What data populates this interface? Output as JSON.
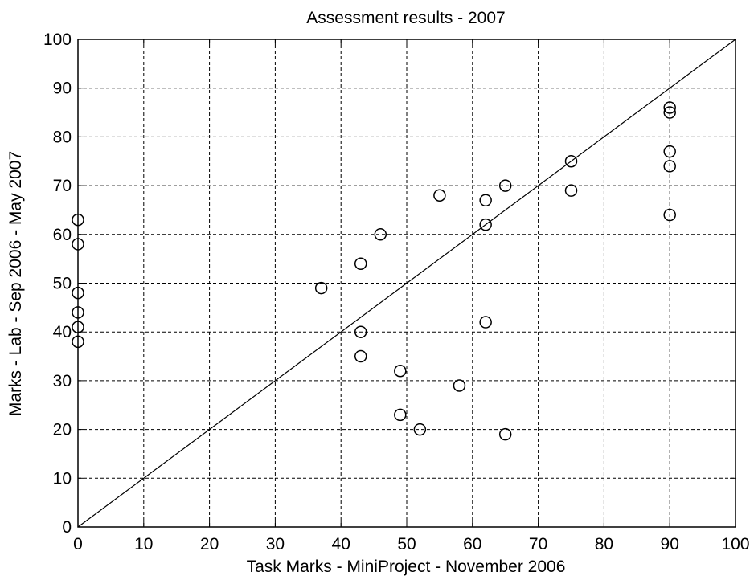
{
  "chart_data": {
    "type": "scatter",
    "title": "Assessment results - 2007",
    "xlabel": "Task Marks - MiniProject - November 2006",
    "ylabel": "Marks - Lab - Sep 2006 - May 2007",
    "xlim": [
      0,
      100
    ],
    "ylim": [
      0,
      100
    ],
    "xticks": [
      0,
      10,
      20,
      30,
      40,
      50,
      60,
      70,
      80,
      90,
      100
    ],
    "yticks": [
      0,
      10,
      20,
      30,
      40,
      50,
      60,
      70,
      80,
      90,
      100
    ],
    "grid": true,
    "marker": "circle",
    "reference_line": {
      "from": [
        0,
        0
      ],
      "to": [
        100,
        100
      ]
    },
    "series": [
      {
        "points": [
          {
            "x": 0,
            "y": 63
          },
          {
            "x": 0,
            "y": 58
          },
          {
            "x": 0,
            "y": 48
          },
          {
            "x": 0,
            "y": 44
          },
          {
            "x": 0,
            "y": 41
          },
          {
            "x": 0,
            "y": 38
          },
          {
            "x": 37,
            "y": 49
          },
          {
            "x": 43,
            "y": 54
          },
          {
            "x": 43,
            "y": 40
          },
          {
            "x": 43,
            "y": 35
          },
          {
            "x": 46,
            "y": 60
          },
          {
            "x": 49,
            "y": 32
          },
          {
            "x": 49,
            "y": 23
          },
          {
            "x": 52,
            "y": 20
          },
          {
            "x": 55,
            "y": 68
          },
          {
            "x": 58,
            "y": 29
          },
          {
            "x": 62,
            "y": 67
          },
          {
            "x": 62,
            "y": 62
          },
          {
            "x": 62,
            "y": 42
          },
          {
            "x": 65,
            "y": 70
          },
          {
            "x": 65,
            "y": 19
          },
          {
            "x": 75,
            "y": 75
          },
          {
            "x": 75,
            "y": 69
          },
          {
            "x": 90,
            "y": 86
          },
          {
            "x": 90,
            "y": 85
          },
          {
            "x": 90,
            "y": 77
          },
          {
            "x": 90,
            "y": 74
          },
          {
            "x": 90,
            "y": 64
          }
        ]
      }
    ],
    "colors": {
      "axes": "#000000",
      "grid": "#000000",
      "marker": "#000000"
    }
  }
}
